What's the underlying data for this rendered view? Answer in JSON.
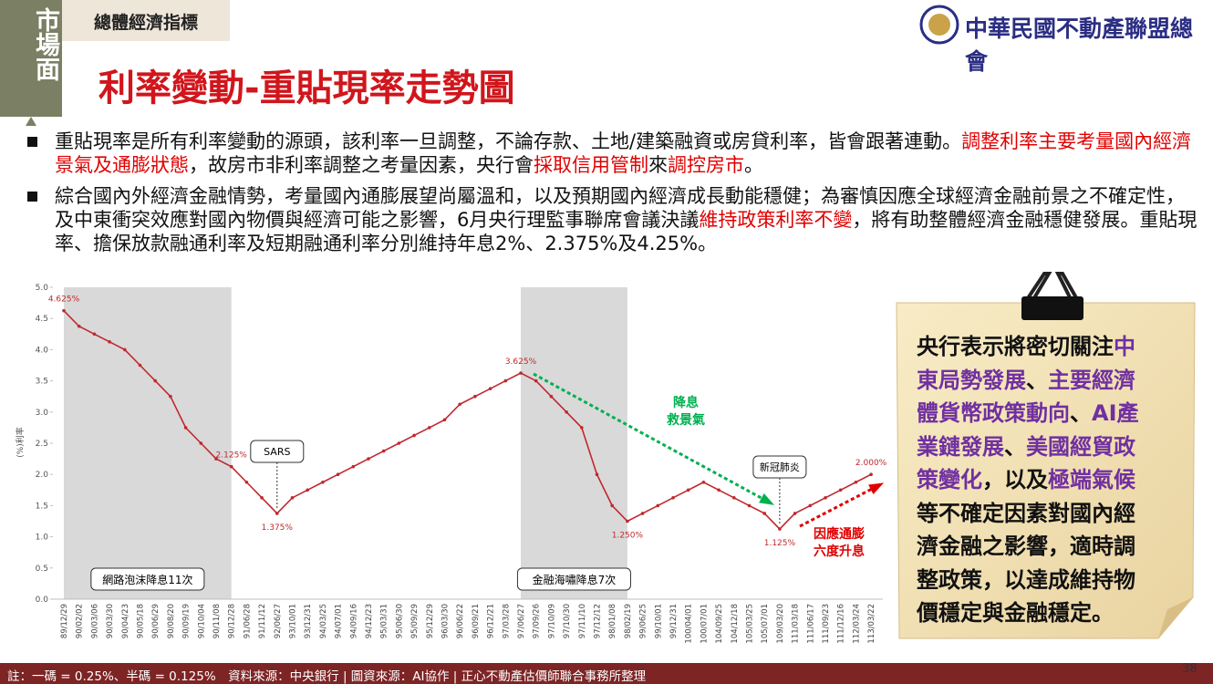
{
  "sidebar": "市場面",
  "section": "總體經濟指標",
  "title": "利率變動-重貼現率走勢圖",
  "logo": "中華民國不動產聯盟總會",
  "bullets": [
    [
      {
        "text": "重貼現率是所有利率變動的源頭，該利率一旦調整，不論存款、土地/建築融資或房貸利率，皆會跟著連動。"
      },
      {
        "text": "調整利率主要考量國內經濟景氣及通膨狀態",
        "color": "#e00000"
      },
      {
        "text": "，故房市非利率調整之考量因素，央行會"
      },
      {
        "text": "採取信用管制",
        "color": "#e00000"
      },
      {
        "text": "來"
      },
      {
        "text": "調控房市",
        "color": "#e00000"
      },
      {
        "text": "。"
      }
    ],
    [
      {
        "text": "綜合國內外經濟金融情勢，考量國內通膨展望尚屬溫和，以及預期國內經濟成長動能穩健；為審慎因應全球經濟金融前景之不確定性，及中東衝突效應對國內物價與經濟可能之影響，6月央行理監事聯席會議決議"
      },
      {
        "text": "維持政策利率不變",
        "color": "#e00000"
      },
      {
        "text": "，將有助整體經濟金融穩健發展。重貼現率、擔保放款融通利率及短期融通利率分別維持年息2%、2.375%及4.25%。"
      }
    ]
  ],
  "card": [
    [
      {
        "text": "央行表示將密切關注"
      },
      {
        "text": "中",
        "color": "#7030a0"
      }
    ],
    [
      {
        "text": "東局勢發展",
        "color": "#7030a0"
      },
      {
        "text": "、"
      },
      {
        "text": "主要經濟",
        "color": "#7030a0"
      }
    ],
    [
      {
        "text": "體貨幣政策動向",
        "color": "#7030a0"
      },
      {
        "text": "、"
      },
      {
        "text": "AI產",
        "color": "#7030a0"
      }
    ],
    [
      {
        "text": "業鏈發展",
        "color": "#7030a0"
      },
      {
        "text": "、"
      },
      {
        "text": "美國經貿政",
        "color": "#7030a0"
      }
    ],
    [
      {
        "text": "策變化",
        "color": "#7030a0"
      },
      {
        "text": "，以及"
      },
      {
        "text": "極端氣候",
        "color": "#7030a0"
      }
    ],
    [
      {
        "text": "等不確定因素對國內經"
      }
    ],
    [
      {
        "text": "濟金融之影響，適時調"
      }
    ],
    [
      {
        "text": "整政策，以達成維持物"
      }
    ],
    [
      {
        "text": "價穩定與金融穩定。"
      }
    ]
  ],
  "footer": "註：一碼 = 0.25%、半碼 = 0.125%　資料來源：中央銀行 | 圖資來源：AI協作 | 正心不動產估價師聯合事務所整理",
  "page_number": "38",
  "chart_data": {
    "type": "line",
    "y_label": "(%)利率",
    "color": "#c0282d",
    "categories": [
      "89/12/29",
      "90/02/02",
      "90/03/06",
      "90/03/30",
      "90/04/23",
      "90/05/18",
      "90/06/29",
      "90/08/20",
      "90/09/19",
      "90/10/04",
      "90/11/08",
      "90/12/28",
      "91/06/28",
      "91/11/12",
      "92/06/27",
      "93/10/01",
      "93/12/31",
      "94/03/25",
      "94/07/01",
      "94/09/16",
      "94/12/23",
      "95/03/31",
      "95/06/30",
      "95/09/29",
      "95/12/29",
      "96/03/30",
      "96/06/22",
      "96/09/21",
      "96/12/21",
      "97/03/28",
      "97/06/27",
      "97/09/26",
      "97/10/09",
      "97/10/30",
      "97/11/10",
      "97/12/12",
      "98/01/08",
      "98/02/19",
      "99/06/25",
      "99/10/01",
      "99/12/31",
      "100/04/01",
      "100/07/01",
      "104/09/25",
      "104/12/18",
      "105/03/25",
      "105/07/01",
      "109/03/20",
      "111/03/18",
      "111/06/17",
      "111/09/23",
      "111/12/16",
      "112/03/24",
      "113/03/22"
    ],
    "values": [
      4.625,
      4.375,
      4.25,
      4.125,
      4.0,
      3.75,
      3.5,
      3.25,
      2.75,
      2.5,
      2.25,
      2.125,
      1.875,
      1.625,
      1.375,
      1.625,
      1.75,
      1.875,
      2.0,
      2.125,
      2.25,
      2.375,
      2.5,
      2.625,
      2.75,
      2.875,
      3.125,
      3.25,
      3.375,
      3.5,
      3.625,
      3.5,
      3.25,
      3.0,
      2.75,
      2.0,
      1.5,
      1.25,
      1.375,
      1.5,
      1.625,
      1.75,
      1.875,
      1.75,
      1.625,
      1.5,
      1.375,
      1.125,
      1.375,
      1.5,
      1.625,
      1.75,
      1.875,
      2.0
    ],
    "value_labels": [
      "4.625%",
      null,
      null,
      null,
      null,
      null,
      null,
      null,
      null,
      null,
      null,
      "2.125%",
      null,
      null,
      "1.375%",
      null,
      null,
      null,
      null,
      null,
      null,
      null,
      null,
      null,
      null,
      null,
      null,
      null,
      null,
      null,
      "3.625%",
      null,
      null,
      null,
      null,
      null,
      null,
      "1.250%",
      null,
      null,
      null,
      null,
      null,
      null,
      null,
      null,
      null,
      "1.125%",
      null,
      null,
      null,
      null,
      null,
      "2.000%"
    ],
    "ylim": [
      0,
      5
    ],
    "yticks": [
      {
        "value": 0,
        "label": "0.0"
      },
      0.5,
      {
        "value": 1,
        "label": "1.0"
      },
      1.5,
      {
        "value": 2,
        "label": "2.0"
      },
      2.5,
      {
        "value": 3,
        "label": "3.0"
      },
      3.5,
      {
        "value": 4,
        "label": "4.0"
      },
      4.5,
      {
        "value": 5,
        "label": "5.0"
      }
    ],
    "shaded": [
      {
        "label": "網路泡沫降息11次",
        "from": "89/12/29",
        "to": "90/12/28"
      },
      {
        "label": "金融海嘯降息7次",
        "from": "97/06/27",
        "to": "98/02/19"
      }
    ],
    "callouts": [
      {
        "text": "SARS",
        "category": "92/06/27"
      },
      {
        "text": "新冠肺炎",
        "category": "109/03/20"
      }
    ],
    "trends": [
      {
        "text": [
          "降息",
          "救景氣"
        ],
        "color": "#00b050"
      },
      {
        "text": [
          "因應通膨",
          "六度升息"
        ],
        "color": "#e00000"
      }
    ]
  }
}
